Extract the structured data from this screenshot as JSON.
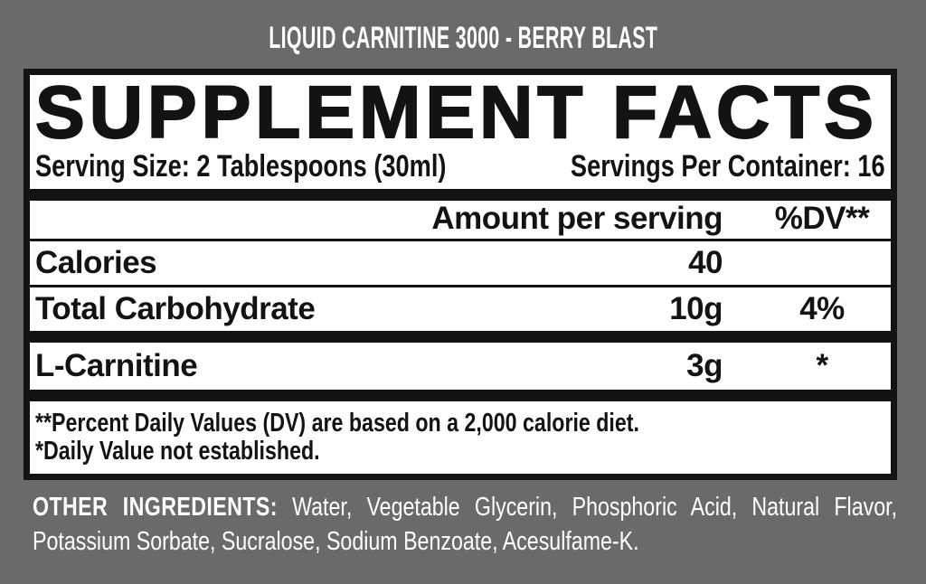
{
  "product_title": "LIQUID CARNITINE 3000 - BERRY BLAST",
  "panel": {
    "title": "SUPPLEMENT FACTS",
    "serving_size": "Serving Size: 2 Tablespoons (30ml)",
    "servings_per_container": "Servings Per Container: 16",
    "columns": {
      "amount": "Amount per serving",
      "dv": "%DV**"
    },
    "rows": [
      {
        "name": "Calories",
        "amount": "40",
        "dv": ""
      },
      {
        "name": "Total Carbohydrate",
        "amount": "10g",
        "dv": "4%"
      },
      {
        "name": "L-Carnitine",
        "amount": "3g",
        "dv": "*"
      }
    ],
    "footnotes": [
      "**Percent Daily Values (DV) are based on a 2,000 calorie diet.",
      "*Daily Value not established."
    ]
  },
  "other_ingredients": {
    "label": "OTHER INGREDIENTS:",
    "line1": "Water, Vegetable Glycerin, Phosphoric Acid, Natural Flavor,",
    "line2": "Potassium Sorbate, Sucralose, Sodium Benzoate, Acesulfame-K."
  },
  "colors": {
    "background": "#6a6a6a",
    "panel_background": "#ffffff",
    "ink": "#131313",
    "light_text": "#ffffff"
  }
}
